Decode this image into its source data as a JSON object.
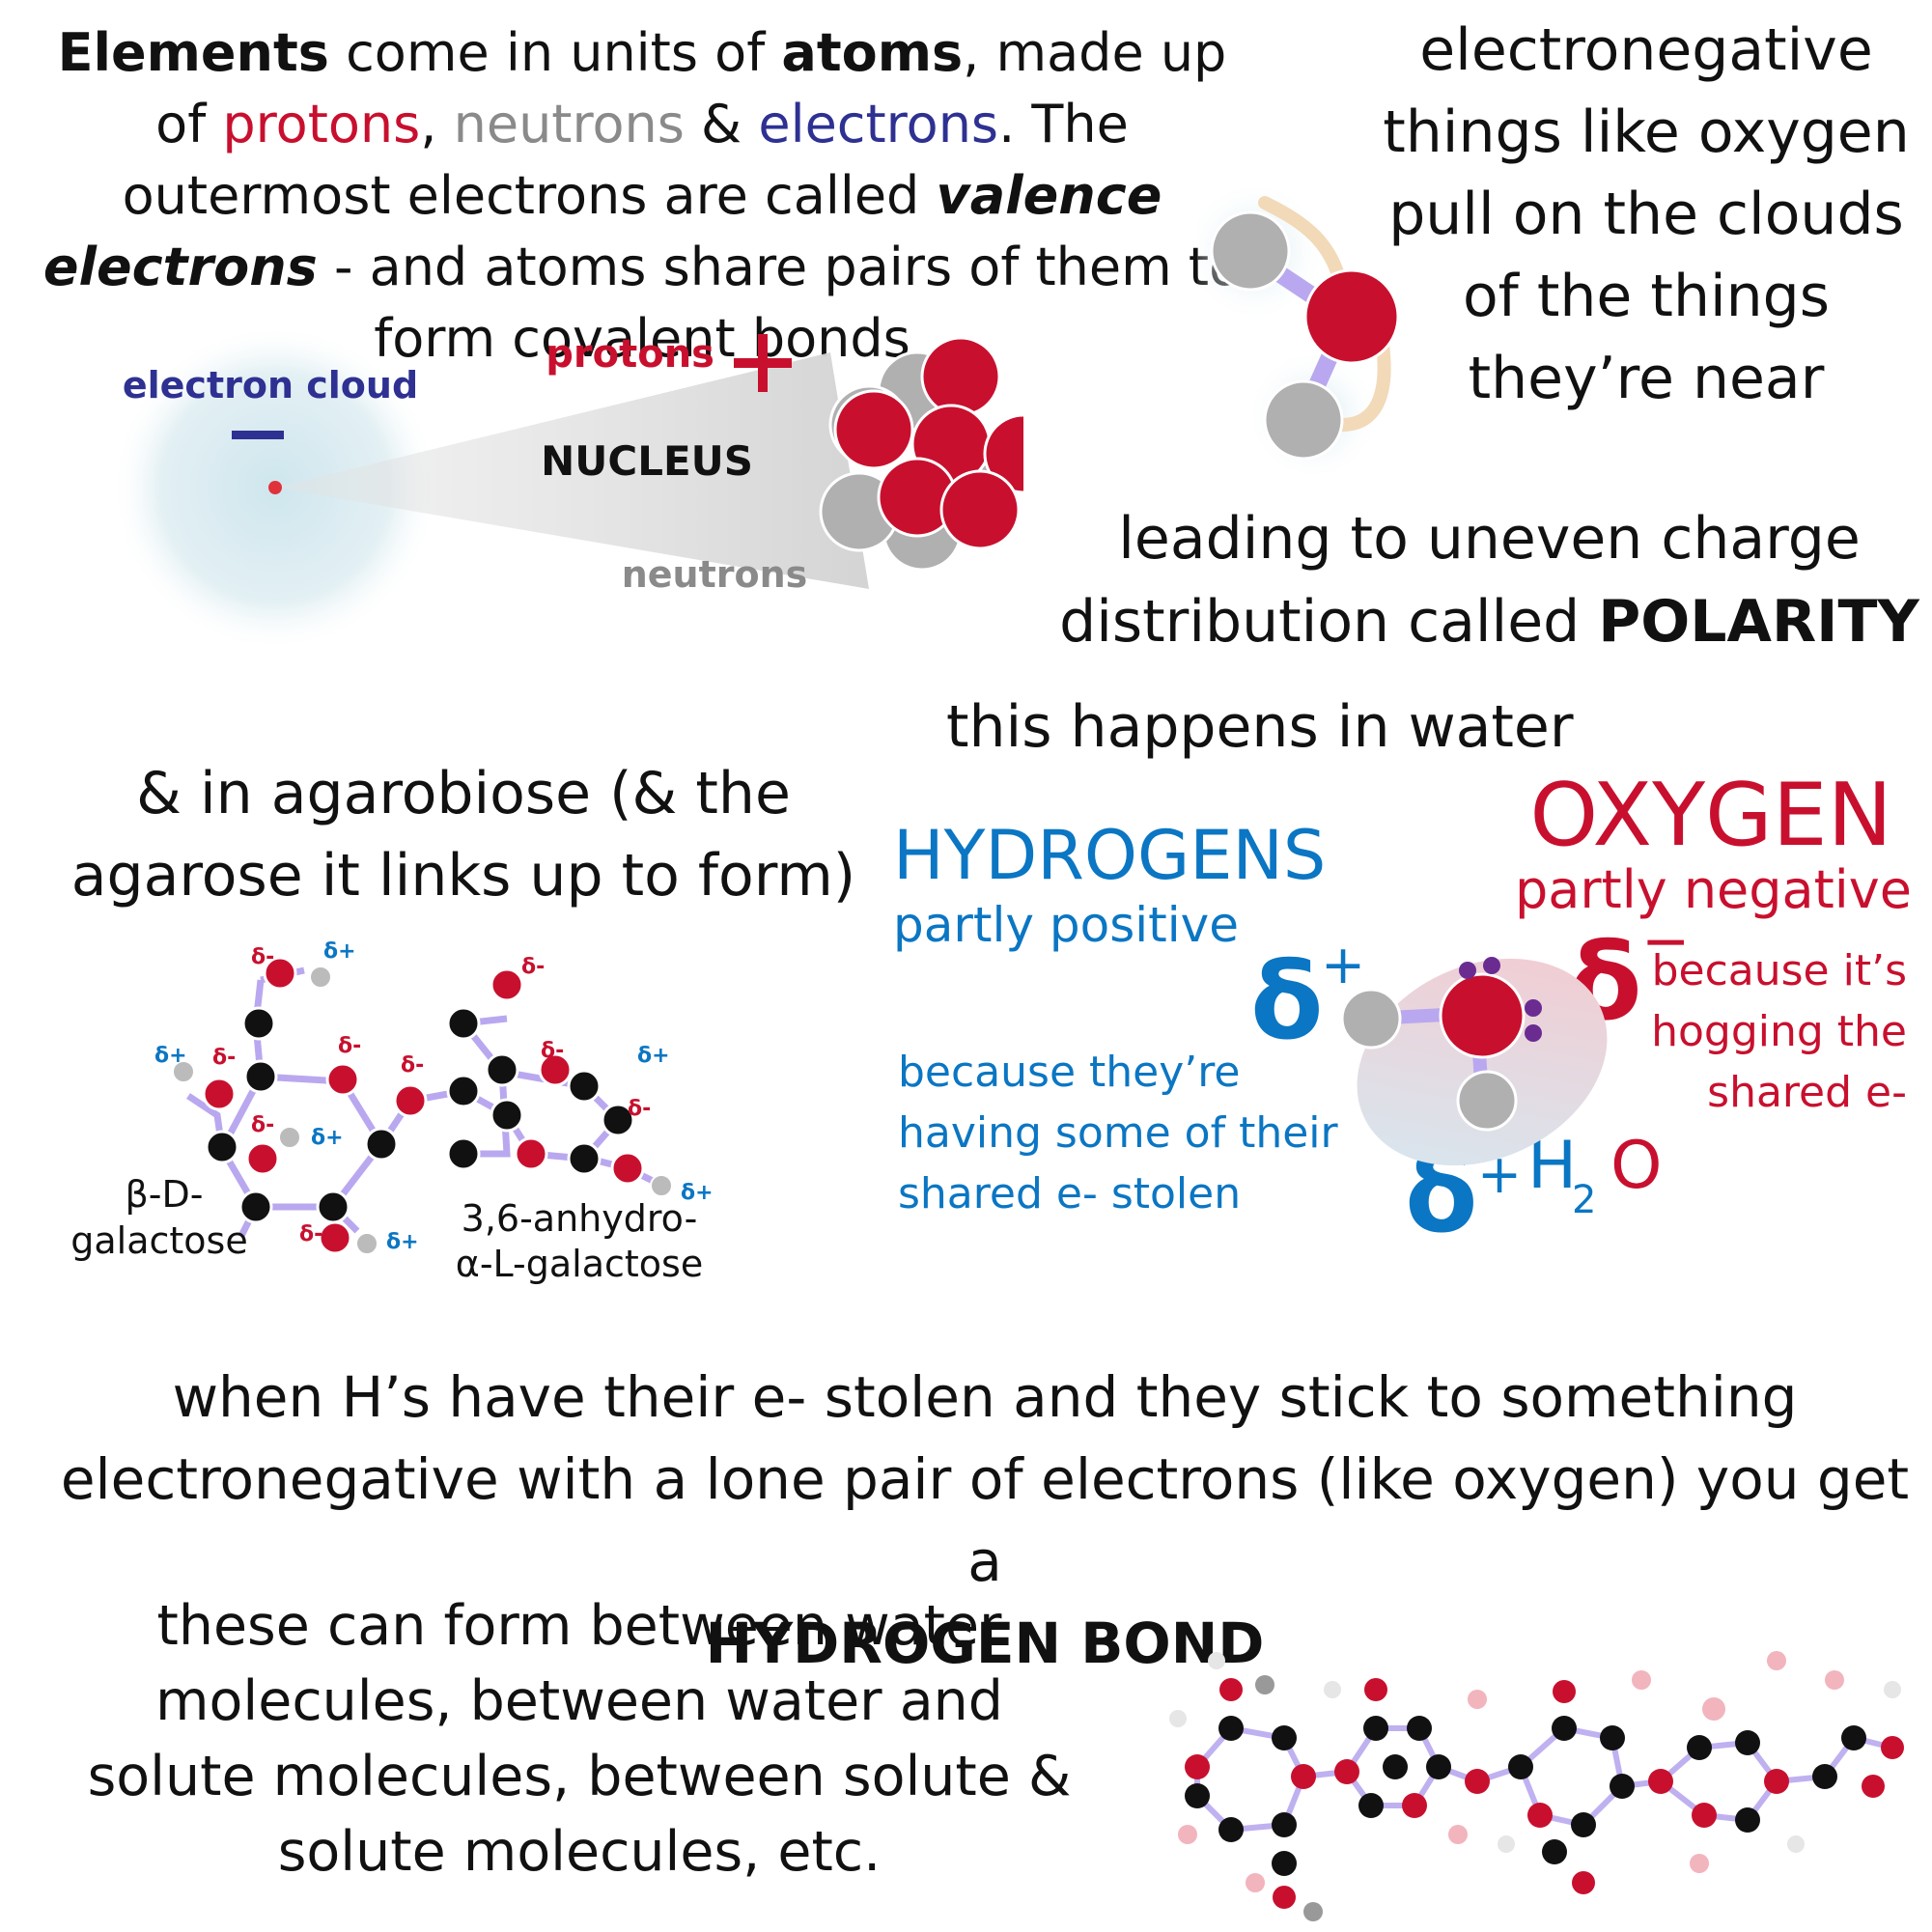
{
  "intro": {
    "w1": "Elements",
    "w2": " come in units of ",
    "w3": "atoms",
    "w4": ", made up of ",
    "protons": "protons",
    "comma": ", ",
    "neutrons": "neutrons",
    "amp": " & ",
    "electrons": "electrons",
    "w5": ". The outermost electrons are called ",
    "valence": "valence electrons",
    "w6": " - and atoms share pairs of them to form covalent bonds"
  },
  "atom": {
    "electron_cloud": "electron cloud",
    "minus": "−",
    "protons": "protons",
    "plus": "+",
    "nucleus": "NUCLEUS",
    "neutrons": "neutrons"
  },
  "electronegative": {
    "text": "electronegative things like oxygen pull on the clouds of the things they’re near"
  },
  "polarity": {
    "lead": "leading to uneven charge distribution called ",
    "bold": "POLARITY"
  },
  "water": {
    "title": "this happens in water",
    "hydrogens": "HYDROGENS",
    "partly_positive": "partly positive",
    "because_h": [
      "because they’re",
      "having some of their",
      "shared e- stolen"
    ],
    "oxygen": "OXYGEN",
    "partly_negative": "partly negative",
    "because_o": [
      "because it’s",
      "hogging the",
      "shared e-"
    ],
    "delta": "δ",
    "plus": "+",
    "minus": "−",
    "h": "H",
    "two": "2",
    "o": "O"
  },
  "agarobiose": {
    "text": "& in agarobiose (& the agarose it links up to form)",
    "left_label": [
      "β-D-",
      "galactose"
    ],
    "right_label": [
      "3,6-anhydro-",
      "α-L-galactose"
    ],
    "atom_c": "C",
    "atom_o": "O",
    "atom_h": "H",
    "d_minus": "δ-",
    "d_plus": "δ+"
  },
  "hydrogen_bond": {
    "text": "when H’s have their e- stolen and they stick to something electronegative with a lone pair of electrons (like oxygen) you get a",
    "bold": "HYDROGEN BOND"
  },
  "these": {
    "text": "these can form between water molecules, between water and solute molecules, between solute & solute molecules, etc."
  },
  "colors": {
    "red": "#c8102e",
    "blue": "#0b76c3",
    "navy": "#2e3192",
    "gray": "#8a8a8a",
    "bond": "#b9a8ef"
  }
}
